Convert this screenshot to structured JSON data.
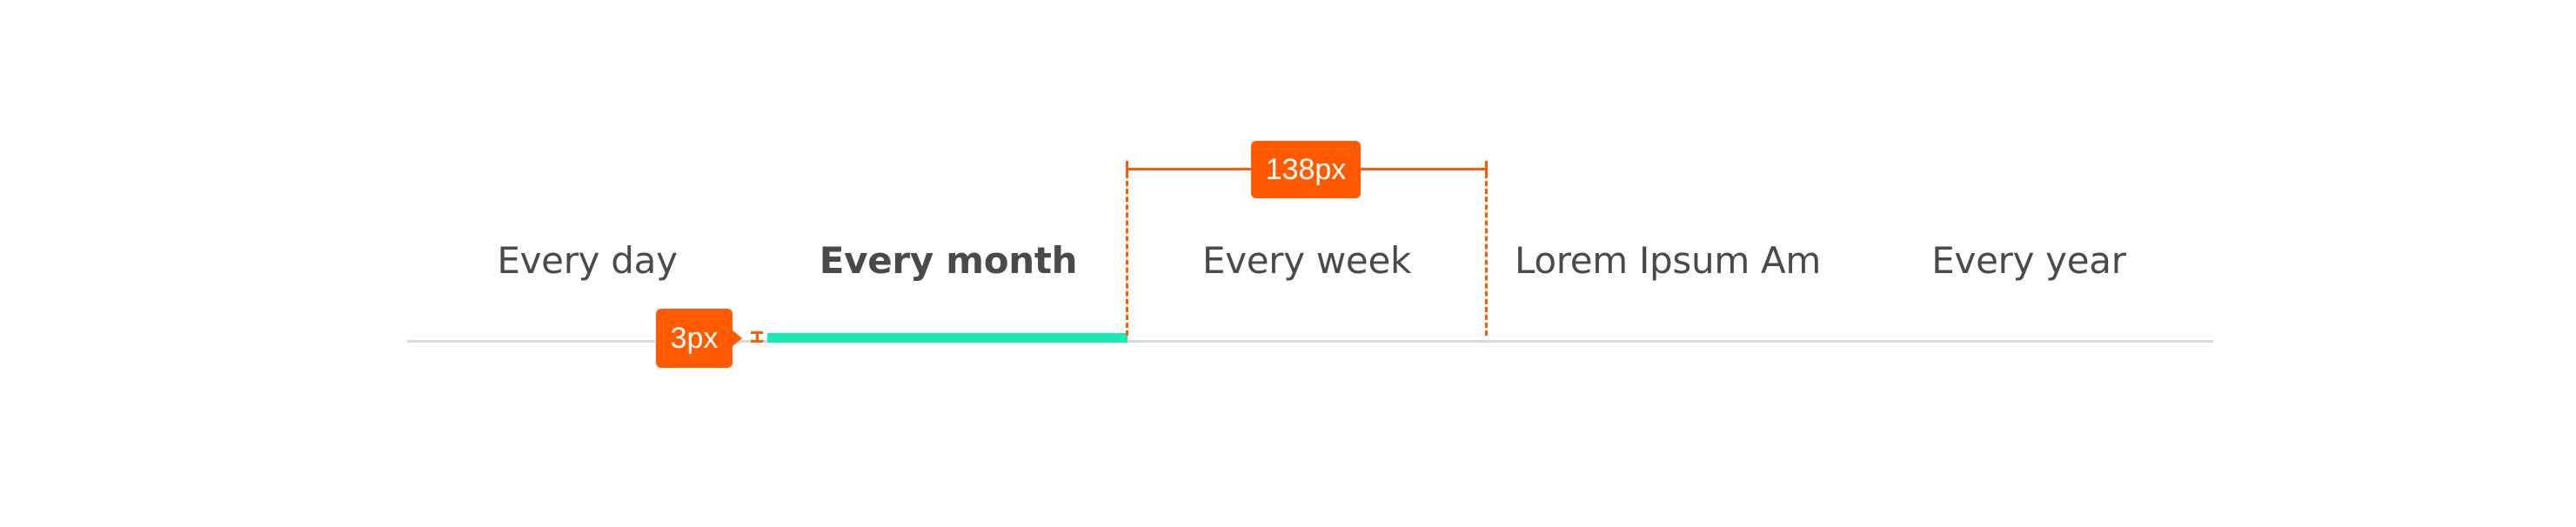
{
  "tabs": [
    {
      "label": "Every day",
      "active": false
    },
    {
      "label": "Every month",
      "active": true
    },
    {
      "label": "Every week",
      "active": false
    },
    {
      "label": "Lorem Ipsum Am",
      "active": false
    },
    {
      "label": "Every year",
      "active": false
    }
  ],
  "annotations": {
    "width_label": "138px",
    "height_label": "3px"
  },
  "colors": {
    "indicator": "#1de9b6",
    "annotation": "#ff5a00",
    "baseline": "#d9d9d9",
    "text": "#4a4a4a"
  }
}
